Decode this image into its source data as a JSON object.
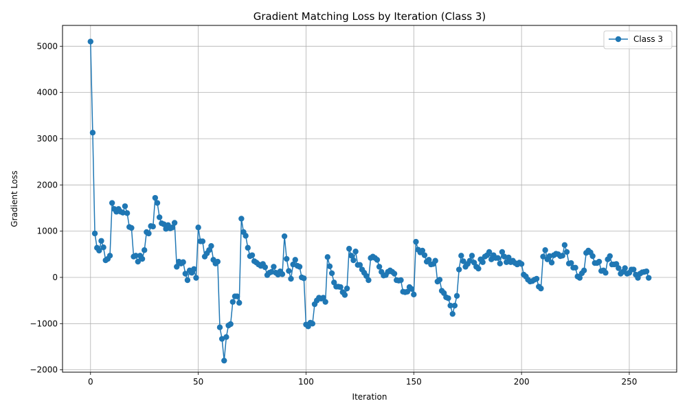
{
  "chart_data": {
    "type": "line",
    "title": "Gradient Matching Loss by Iteration (Class 3)",
    "xlabel": "Iteration",
    "ylabel": "Gradient Loss",
    "xlim": [
      -13,
      272
    ],
    "ylim": [
      -2050,
      5450
    ],
    "xticks": [
      0,
      50,
      100,
      150,
      200,
      250
    ],
    "yticks": [
      -2000,
      -1000,
      0,
      1000,
      2000,
      3000,
      4000,
      5000
    ],
    "grid": true,
    "legend_position": "top-right",
    "series": [
      {
        "name": "Class 3",
        "color": "#1f77b4",
        "marker": "circle",
        "x_start": 0,
        "x_step": 1,
        "values": [
          5100,
          3130,
          950,
          640,
          580,
          790,
          650,
          370,
          400,
          470,
          1610,
          1480,
          1420,
          1480,
          1420,
          1400,
          1540,
          1390,
          1090,
          1070,
          450,
          470,
          340,
          470,
          400,
          590,
          980,
          950,
          1110,
          1100,
          1720,
          1610,
          1300,
          1170,
          1150,
          1050,
          1130,
          1060,
          1080,
          1180,
          230,
          340,
          300,
          330,
          80,
          -60,
          150,
          100,
          180,
          -10,
          1080,
          780,
          780,
          450,
          520,
          590,
          680,
          380,
          300,
          340,
          -1080,
          -1330,
          -1800,
          -1290,
          -1040,
          -1010,
          -530,
          -410,
          -410,
          -550,
          1270,
          980,
          900,
          640,
          460,
          480,
          350,
          320,
          280,
          250,
          290,
          220,
          50,
          100,
          120,
          230,
          100,
          60,
          130,
          70,
          890,
          400,
          140,
          -30,
          280,
          380,
          250,
          230,
          0,
          -20,
          -1020,
          -1060,
          -980,
          -1000,
          -580,
          -500,
          -440,
          -460,
          -440,
          -530,
          440,
          240,
          90,
          -110,
          -200,
          -200,
          -210,
          -320,
          -380,
          -240,
          620,
          470,
          370,
          560,
          270,
          270,
          170,
          100,
          30,
          -60,
          420,
          450,
          420,
          380,
          230,
          120,
          40,
          50,
          120,
          150,
          120,
          80,
          -60,
          -70,
          -60,
          -310,
          -320,
          -310,
          -210,
          -250,
          -370,
          770,
          600,
          540,
          580,
          480,
          340,
          380,
          280,
          290,
          360,
          -90,
          -50,
          -290,
          -340,
          -430,
          -450,
          -610,
          -790,
          -610,
          -400,
          170,
          470,
          350,
          230,
          290,
          360,
          470,
          320,
          230,
          190,
          390,
          330,
          450,
          480,
          550,
          390,
          480,
          420,
          420,
          300,
          550,
          450,
          330,
          430,
          330,
          360,
          310,
          280,
          320,
          290,
          60,
          20,
          -50,
          -90,
          -80,
          -50,
          -30,
          -200,
          -240,
          450,
          590,
          390,
          460,
          320,
          480,
          510,
          500,
          460,
          470,
          700,
          550,
          300,
          310,
          210,
          210,
          20,
          -10,
          90,
          150,
          530,
          580,
          540,
          460,
          310,
          310,
          340,
          140,
          150,
          100,
          390,
          460,
          280,
          280,
          290,
          200,
          80,
          120,
          200,
          80,
          100,
          170,
          170,
          60,
          -10,
          80,
          110,
          120,
          130,
          -10
        ]
      }
    ]
  }
}
